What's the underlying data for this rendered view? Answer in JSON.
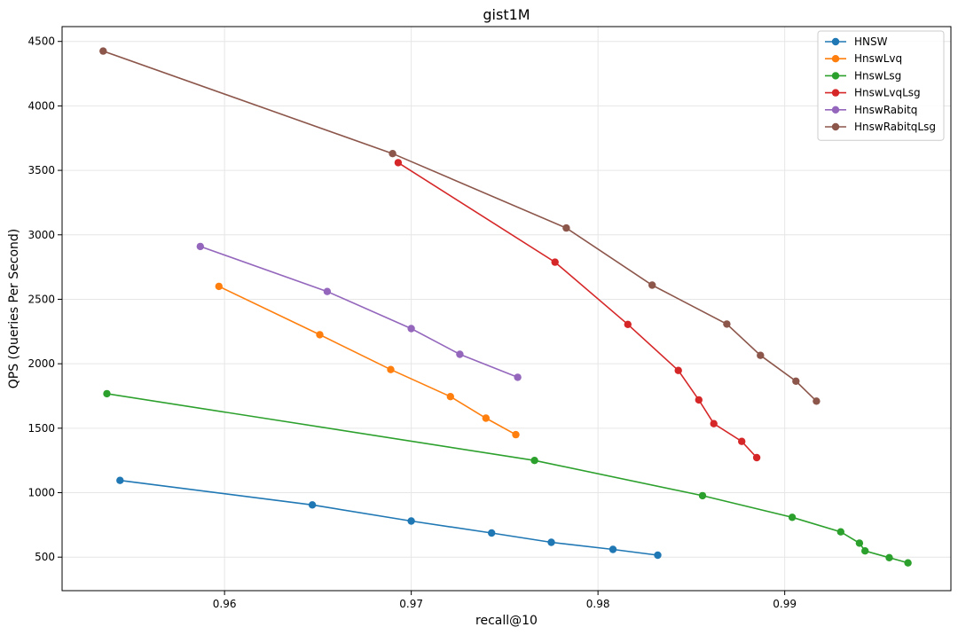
{
  "chart_data": {
    "type": "line",
    "title": "gist1M",
    "xlabel": "recall@10",
    "ylabel": "QPS (Queries Per Second)",
    "xlim": [
      0.9513,
      0.9989
    ],
    "ylim": [
      240,
      4615
    ],
    "xticks": [
      0.96,
      0.97,
      0.98,
      0.99
    ],
    "xtick_labels": [
      "0.96",
      "0.97",
      "0.98",
      "0.99"
    ],
    "yticks": [
      500,
      1000,
      1500,
      2000,
      2500,
      3000,
      3500,
      4000,
      4500
    ],
    "ytick_labels": [
      "500",
      "1000",
      "1500",
      "2000",
      "2500",
      "3000",
      "3500",
      "4000",
      "4500"
    ],
    "grid": true,
    "legend_position": "top-right",
    "series": [
      {
        "name": "HNSW",
        "color": "#1f77b4",
        "x": [
          0.9544,
          0.9647,
          0.97,
          0.9743,
          0.9775,
          0.9808,
          0.9832
        ],
        "y": [
          1095,
          905,
          780,
          687,
          615,
          560,
          515
        ]
      },
      {
        "name": "HnswLvq",
        "color": "#ff7f0e",
        "x": [
          0.9597,
          0.9651,
          0.9689,
          0.9721,
          0.974,
          0.9756
        ],
        "y": [
          2600,
          2225,
          1955,
          1745,
          1578,
          1450
        ]
      },
      {
        "name": "HnswLsg",
        "color": "#2ca02c",
        "x": [
          0.9537,
          0.9766,
          0.9856,
          0.9904,
          0.993,
          0.994,
          0.9943,
          0.9956,
          0.9966
        ],
        "y": [
          1768,
          1250,
          977,
          809,
          696,
          609,
          548,
          496,
          455
        ]
      },
      {
        "name": "HnswLvqLsg",
        "color": "#d62728",
        "x": [
          0.9693,
          0.9777,
          0.9816,
          0.9843,
          0.9854,
          0.9862,
          0.9877,
          0.9885
        ],
        "y": [
          3560,
          2788,
          2305,
          1948,
          1720,
          1535,
          1398,
          1272
        ]
      },
      {
        "name": "HnswRabitq",
        "color": "#9467bd",
        "x": [
          0.9587,
          0.9655,
          0.97,
          0.9726,
          0.9757
        ],
        "y": [
          2910,
          2560,
          2273,
          2073,
          1895
        ]
      },
      {
        "name": "HnswRabitqLsg",
        "color": "#8c564b",
        "x": [
          0.9535,
          0.969,
          0.9783,
          0.9829,
          0.9869,
          0.9887,
          0.9906,
          0.9917
        ],
        "y": [
          4425,
          3630,
          3053,
          2610,
          2308,
          2065,
          1865,
          1710
        ]
      }
    ]
  }
}
